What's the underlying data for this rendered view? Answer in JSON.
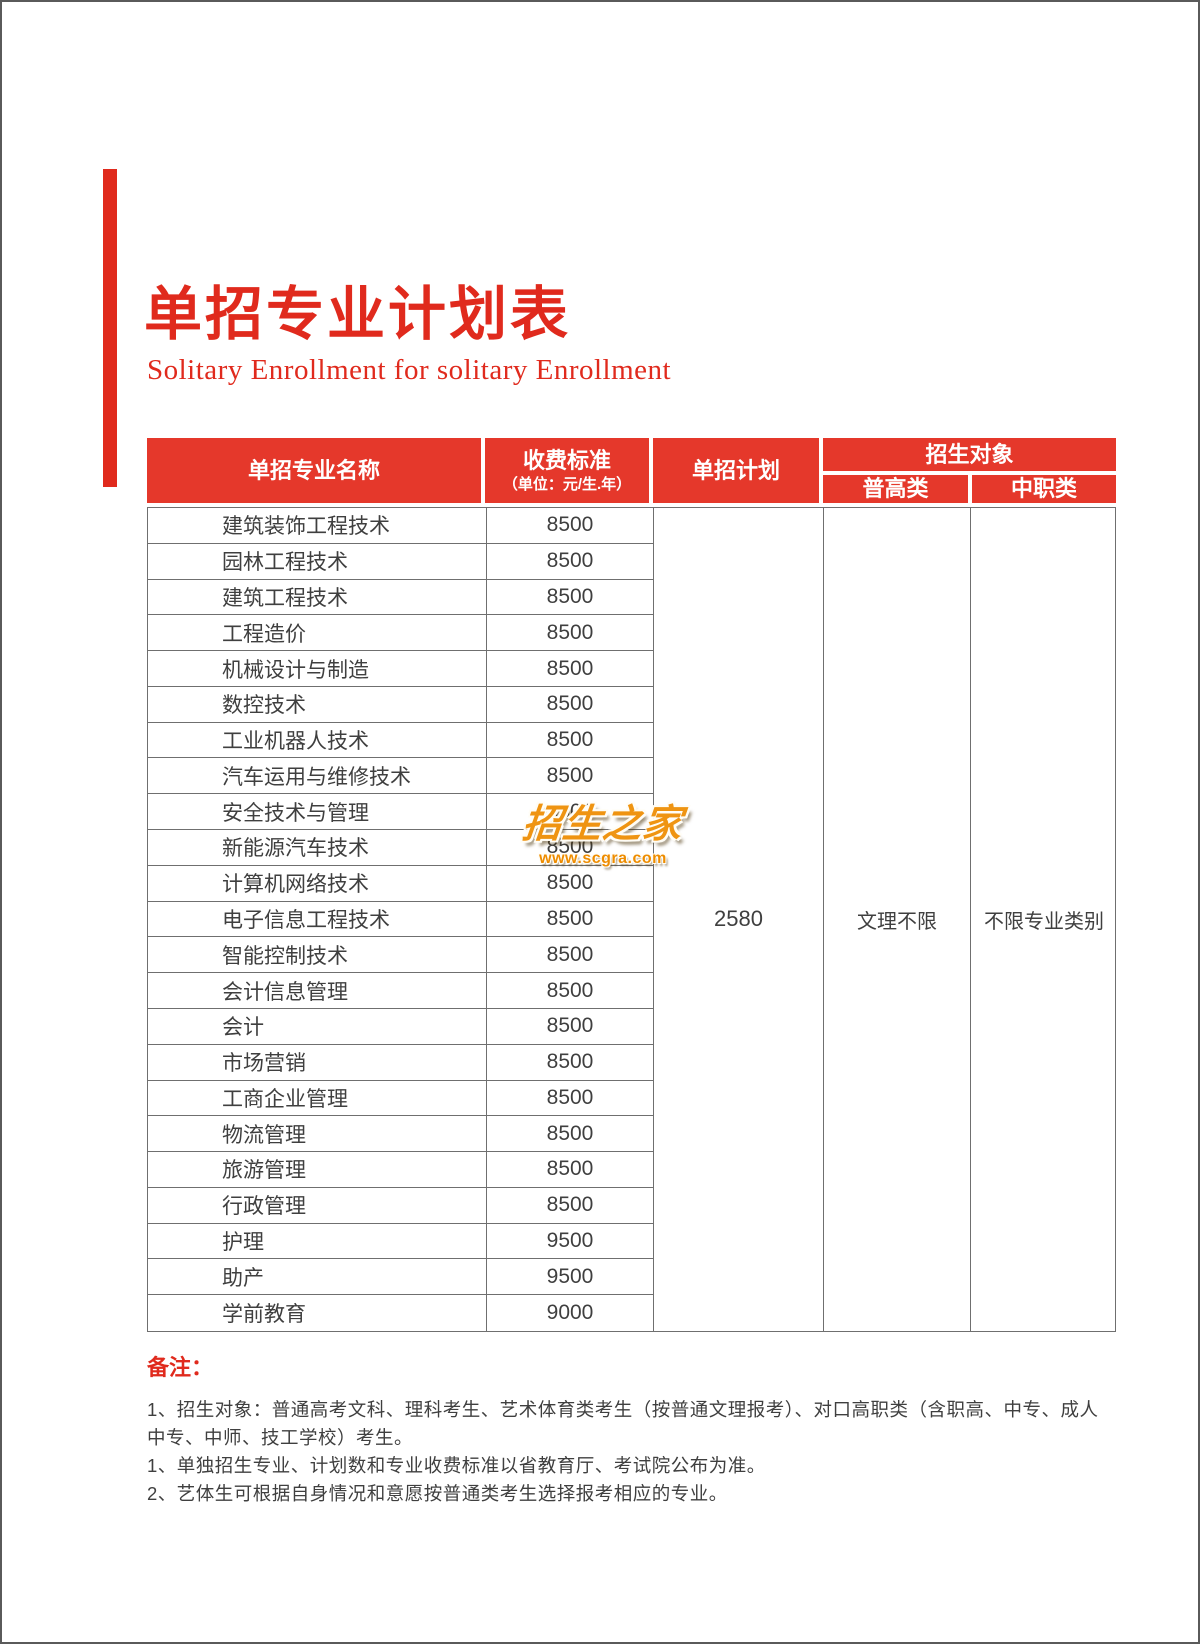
{
  "page": {
    "title": "单招专业计划表",
    "subtitle": "Solitary Enrollment for solitary Enrollment"
  },
  "colors": {
    "brand_red": "#e02a1d",
    "header_red": "#e5382b",
    "body_text": "#3f3f3f",
    "border_gray": "#6f6f6f",
    "watermark_orange": "#ef9412"
  },
  "table": {
    "header": {
      "major": "单招专业名称",
      "fee": "收费标准",
      "fee_unit": "（单位：元/生.年）",
      "plan": "单招计划",
      "target_group": "招生对象",
      "target_general": "普高类",
      "target_vocational": "中职类"
    },
    "rows": [
      {
        "major": "建筑装饰工程技术",
        "fee": "8500"
      },
      {
        "major": "园林工程技术",
        "fee": "8500"
      },
      {
        "major": "建筑工程技术",
        "fee": "8500"
      },
      {
        "major": "工程造价",
        "fee": "8500"
      },
      {
        "major": "机械设计与制造",
        "fee": "8500"
      },
      {
        "major": "数控技术",
        "fee": "8500"
      },
      {
        "major": "工业机器人技术",
        "fee": "8500"
      },
      {
        "major": "汽车运用与维修技术",
        "fee": "8500"
      },
      {
        "major": "安全技术与管理",
        "fee": "8500"
      },
      {
        "major": "新能源汽车技术",
        "fee": "8500"
      },
      {
        "major": "计算机网络技术",
        "fee": "8500"
      },
      {
        "major": "电子信息工程技术",
        "fee": "8500"
      },
      {
        "major": "智能控制技术",
        "fee": "8500"
      },
      {
        "major": "会计信息管理",
        "fee": "8500"
      },
      {
        "major": "会计",
        "fee": "8500"
      },
      {
        "major": "市场营销",
        "fee": "8500"
      },
      {
        "major": "工商企业管理",
        "fee": "8500"
      },
      {
        "major": "物流管理",
        "fee": "8500"
      },
      {
        "major": "旅游管理",
        "fee": "8500"
      },
      {
        "major": "行政管理",
        "fee": "8500"
      },
      {
        "major": "护理",
        "fee": "9500"
      },
      {
        "major": "助产",
        "fee": "9500"
      },
      {
        "major": "学前教育",
        "fee": "9000"
      }
    ],
    "merged": {
      "plan_total": "2580",
      "general": "文理不限",
      "vocational": "不限专业类别"
    }
  },
  "watermark": {
    "text": "招生之家",
    "url": "www.scgra.com"
  },
  "notes": {
    "label": "备注：",
    "items": [
      "1、招生对象：普通高考文科、理科考生、艺术体育类考生（按普通文理报考）、对口高职类（含职高、中专、成人中专、中师、技工学校）考生。",
      "1、单独招生专业、计划数和专业收费标准以省教育厅、考试院公布为准。",
      "2、艺体生可根据自身情况和意愿按普通类考生选择报考相应的专业。"
    ]
  }
}
